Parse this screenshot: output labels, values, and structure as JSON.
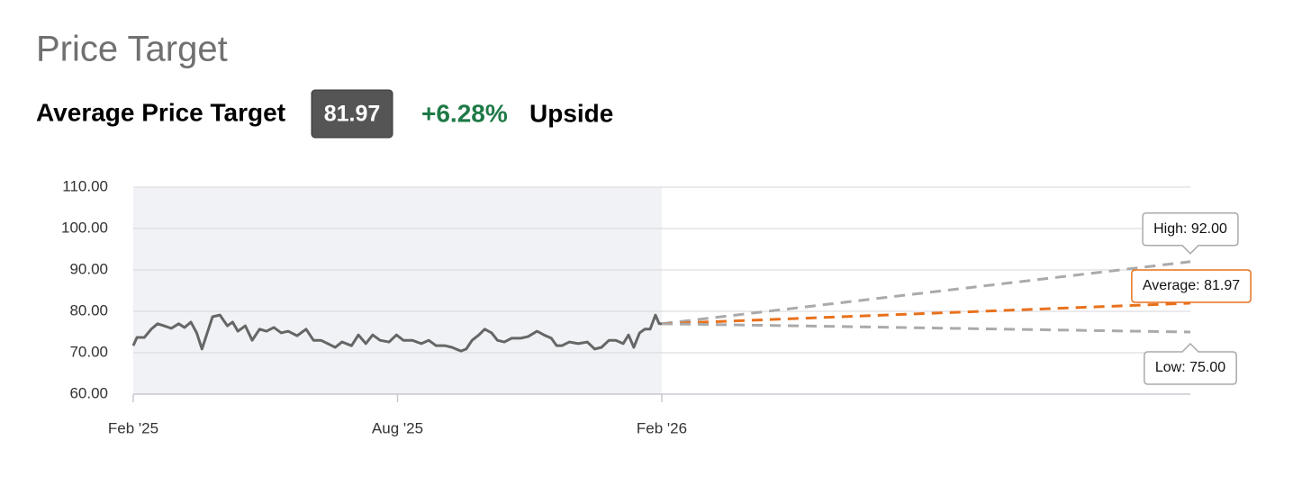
{
  "header": {
    "title": "Price Target",
    "average_label": "Average Price Target",
    "average_value": "81.97",
    "upside": "+6.28%",
    "upside_label": "Upside"
  },
  "chart_data": {
    "type": "line",
    "xlim": [
      2025.083,
      2027.083
    ],
    "xticks": [
      {
        "value": 2025.083,
        "label": "Feb '25"
      },
      {
        "value": 2025.583,
        "label": "Aug '25"
      },
      {
        "value": 2026.083,
        "label": "Feb '26"
      }
    ],
    "ylim": [
      60,
      110
    ],
    "yticks": [
      {
        "value": 60,
        "label": "60.00"
      },
      {
        "value": 70,
        "label": "70.00"
      },
      {
        "value": 80,
        "label": "80.00"
      },
      {
        "value": 90,
        "label": "90.00"
      },
      {
        "value": 100,
        "label": "100.00"
      },
      {
        "value": 110,
        "label": "110.00"
      }
    ],
    "grid": true,
    "series": [
      {
        "color": "#666666",
        "x": [
          2025.083,
          2025.09,
          2025.104,
          2025.117,
          2025.129,
          2025.141,
          2025.155,
          2025.169,
          2025.18,
          2025.192,
          2025.203,
          2025.213,
          2025.223,
          2025.233,
          2025.247,
          2025.261,
          2025.271,
          2025.281,
          2025.295,
          2025.308,
          2025.322,
          2025.335,
          2025.349,
          2025.363,
          2025.376,
          2025.393,
          2025.41,
          2025.424,
          2025.438,
          2025.451,
          2025.465,
          2025.478,
          2025.496,
          2025.509,
          2025.523,
          2025.536,
          2025.55,
          2025.567,
          2025.581,
          2025.594,
          2025.611,
          2025.628,
          2025.642,
          2025.656,
          2025.673,
          2025.686,
          2025.703,
          2025.713,
          2025.724,
          2025.737,
          2025.748,
          2025.761,
          2025.772,
          2025.785,
          2025.799,
          2025.816,
          2025.83,
          2025.847,
          2025.86,
          2025.874,
          2025.884,
          2025.894,
          2025.908,
          2025.925,
          2025.942,
          2025.956,
          2025.969,
          2025.983,
          2025.996,
          2026.01,
          2026.02,
          2026.03,
          2026.041,
          2026.051,
          2026.061,
          2026.071,
          2026.078,
          2026.083
        ],
        "values": [
          71.7,
          73.7,
          73.7,
          75.7,
          77.0,
          76.5,
          75.9,
          77.0,
          76.1,
          77.4,
          74.8,
          70.9,
          74.8,
          78.7,
          79.1,
          76.5,
          77.4,
          75.2,
          76.5,
          73.0,
          75.7,
          75.2,
          76.1,
          74.8,
          75.2,
          74.1,
          75.7,
          73.0,
          73.0,
          72.2,
          71.3,
          72.6,
          71.7,
          74.3,
          72.2,
          74.3,
          73.0,
          72.6,
          74.3,
          73.0,
          73.0,
          72.2,
          73.0,
          71.7,
          71.7,
          71.3,
          70.4,
          70.9,
          73.0,
          74.3,
          75.7,
          74.8,
          73.0,
          72.6,
          73.5,
          73.5,
          73.9,
          75.2,
          74.3,
          73.5,
          71.7,
          71.7,
          72.6,
          72.2,
          72.6,
          70.9,
          71.3,
          73.0,
          73.0,
          72.2,
          74.3,
          71.3,
          74.8,
          75.7,
          75.7,
          79.1,
          77.0,
          77.0
        ]
      },
      {
        "color": "#aaaaaa",
        "dashed": true,
        "x": [
          2026.083,
          2027.083
        ],
        "values": [
          77.0,
          92
        ],
        "value_labels": [
          null,
          "High: 92.00"
        ]
      },
      {
        "color": "#e8711c",
        "dashed": true,
        "x": [
          2026.083,
          2027.083
        ],
        "values": [
          77.0,
          81.97
        ],
        "value_labels": [
          null,
          "Average: 81.97"
        ]
      },
      {
        "color": "#aaaaaa",
        "dashed": true,
        "x": [
          2026.083,
          2027.083
        ],
        "values": [
          77.0,
          75
        ],
        "value_labels": [
          null,
          "Low: 75.00"
        ]
      }
    ]
  }
}
